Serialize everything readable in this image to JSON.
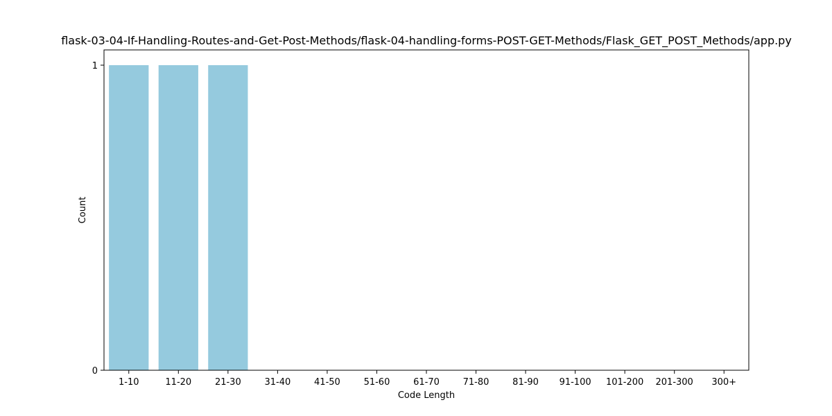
{
  "chart_data": {
    "type": "bar",
    "title": "flask-03-04-If-Handling-Routes-and-Get-Post-Methods/flask-04-handling-forms-POST-GET-Methods/Flask_GET_POST_Methods/app.py",
    "xlabel": "Code Length",
    "ylabel": "Count",
    "categories": [
      "1-10",
      "11-20",
      "21-30",
      "31-40",
      "41-50",
      "51-60",
      "61-70",
      "71-80",
      "81-90",
      "91-100",
      "101-200",
      "201-300",
      "300+"
    ],
    "values": [
      1,
      1,
      1,
      0,
      0,
      0,
      0,
      0,
      0,
      0,
      0,
      0,
      0
    ],
    "ylim": [
      0,
      1.05
    ],
    "yticks": [
      0,
      1
    ],
    "grid": false,
    "bar_color": "#95cade"
  }
}
